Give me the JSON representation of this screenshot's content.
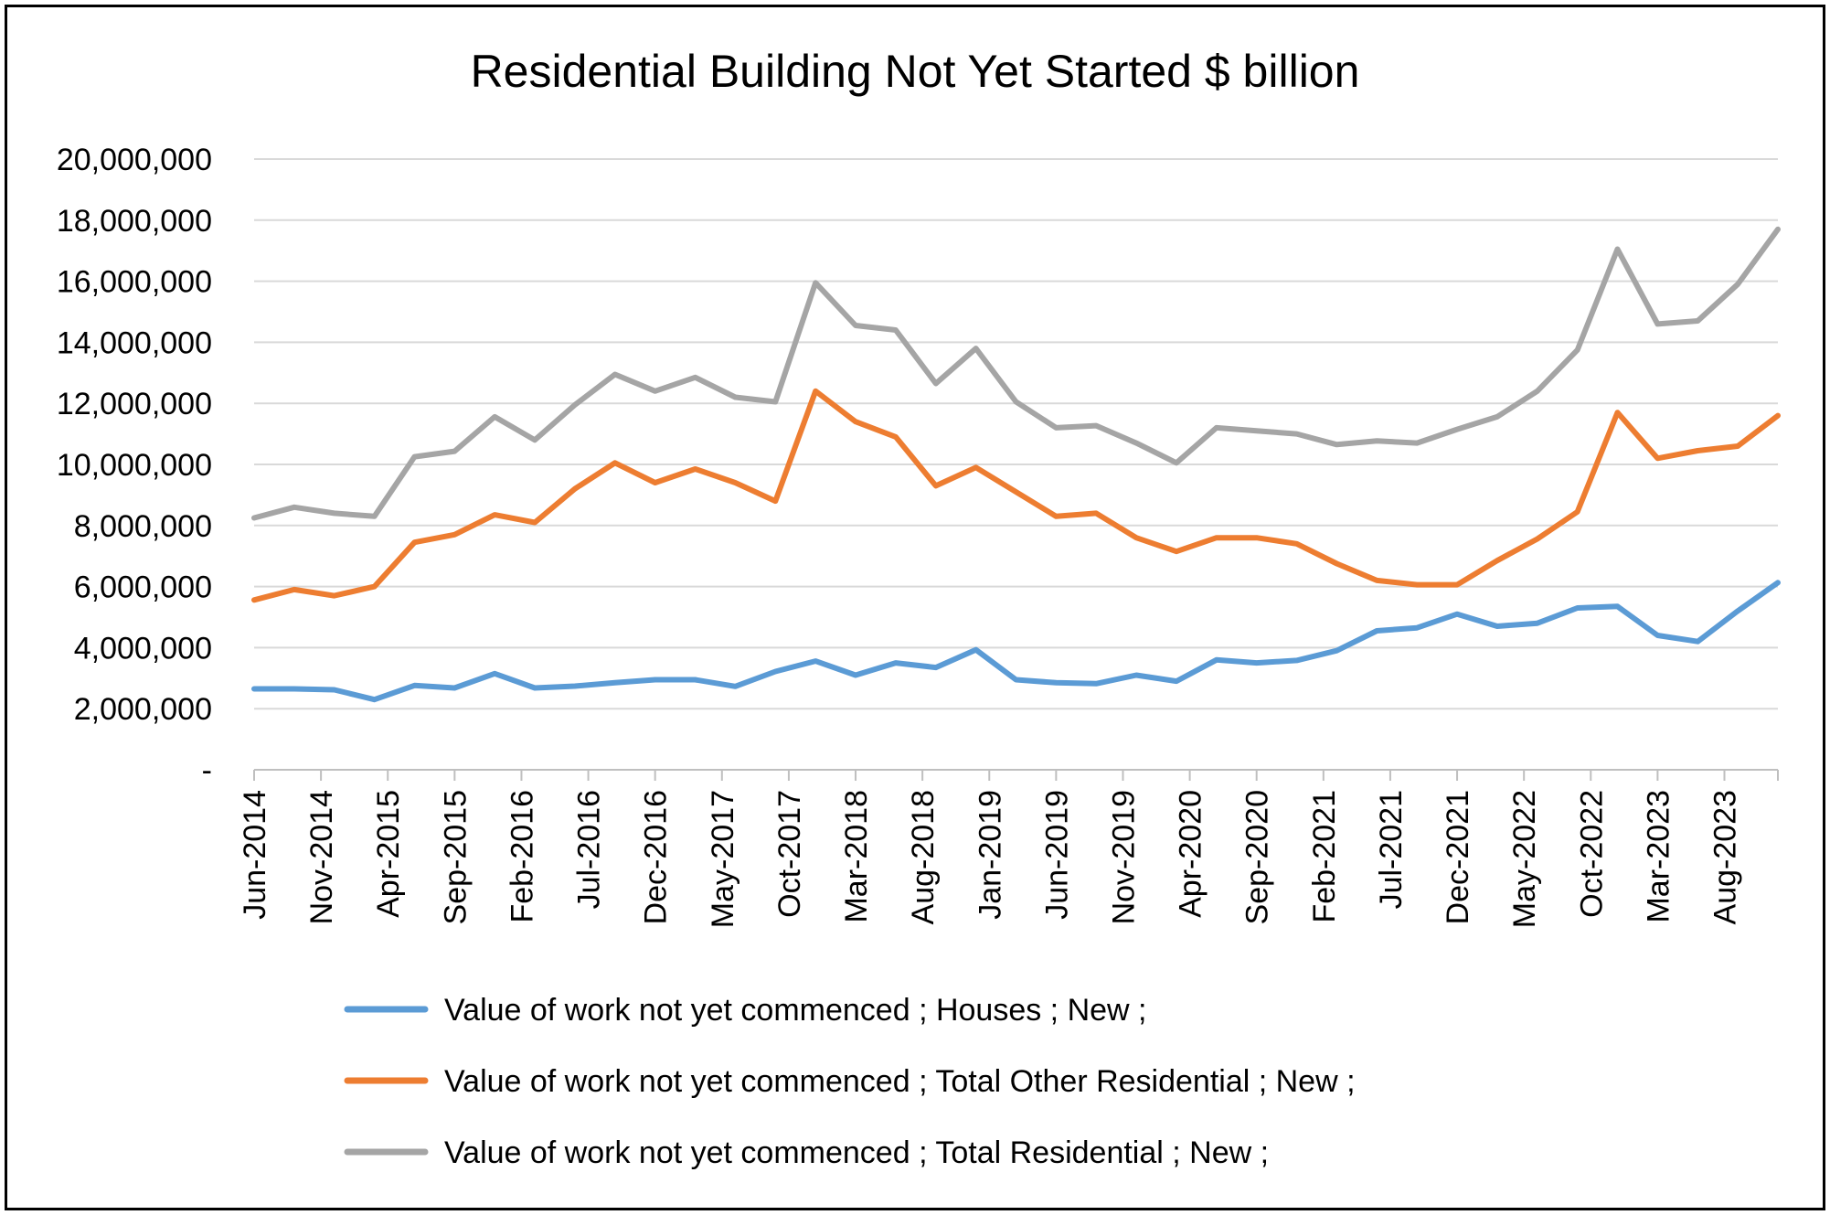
{
  "chart_data": {
    "type": "line",
    "title": "Residential Building Not Yet Started $ billion",
    "xlabel": "",
    "ylabel": "",
    "ylim": [
      0,
      20000000
    ],
    "yticks": [
      "-",
      "2,000,000",
      "4,000,000",
      "6,000,000",
      "8,000,000",
      "10,000,000",
      "12,000,000",
      "14,000,000",
      "16,000,000",
      "18,000,000",
      "20,000,000"
    ],
    "x_tick_labels": [
      "Jun-2014",
      "Nov-2014",
      "Apr-2015",
      "Sep-2015",
      "Feb-2016",
      "Jul-2016",
      "Dec-2016",
      "May-2017",
      "Oct-2017",
      "Mar-2018",
      "Aug-2018",
      "Jan-2019",
      "Jun-2019",
      "Nov-2019",
      "Apr-2020",
      "Sep-2020",
      "Feb-2021",
      "Jul-2021",
      "Dec-2021",
      "May-2022",
      "Oct-2022",
      "Mar-2023",
      "Aug-2023"
    ],
    "x": [
      "Jun-2014",
      "Sep-2014",
      "Dec-2014",
      "Mar-2015",
      "Jun-2015",
      "Sep-2015",
      "Dec-2015",
      "Mar-2016",
      "Jun-2016",
      "Sep-2016",
      "Dec-2016",
      "Mar-2017",
      "Jun-2017",
      "Sep-2017",
      "Dec-2017",
      "Mar-2018",
      "Jun-2018",
      "Sep-2018",
      "Dec-2018",
      "Mar-2019",
      "Jun-2019",
      "Sep-2019",
      "Dec-2019",
      "Mar-2020",
      "Jun-2020",
      "Sep-2020",
      "Dec-2020",
      "Mar-2021",
      "Jun-2021",
      "Sep-2021",
      "Dec-2021",
      "Mar-2022",
      "Jun-2022",
      "Sep-2022",
      "Dec-2022",
      "Mar-2023",
      "Jun-2023",
      "Sep-2023",
      "Dec-2023"
    ],
    "series": [
      {
        "name": "Value of work not yet commenced ;  Houses ;  New ;",
        "color": "#5b9bd5",
        "values": [
          2650000,
          2650000,
          2620000,
          2300000,
          2760000,
          2680000,
          3150000,
          2680000,
          2740000,
          2850000,
          2950000,
          2950000,
          2730000,
          3220000,
          3560000,
          3100000,
          3500000,
          3350000,
          3930000,
          2950000,
          2850000,
          2820000,
          3100000,
          2900000,
          3600000,
          3500000,
          3580000,
          3900000,
          4550000,
          4650000,
          5100000,
          4700000,
          4800000,
          5300000,
          5350000,
          4400000,
          4200000,
          5200000,
          6130000
        ]
      },
      {
        "name": "Value of work not yet commenced ;  Total Other Residential ;  New ;",
        "color": "#ed7d31",
        "values": [
          5560000,
          5900000,
          5700000,
          6000000,
          7450000,
          7700000,
          8350000,
          8100000,
          9200000,
          10050000,
          9400000,
          9850000,
          9400000,
          8800000,
          12400000,
          11400000,
          10900000,
          9300000,
          9900000,
          9100000,
          8300000,
          8400000,
          7600000,
          7150000,
          7600000,
          7600000,
          7400000,
          6750000,
          6200000,
          6060000,
          6060000,
          6850000,
          7560000,
          8450000,
          11700000,
          10200000,
          10450000,
          10600000,
          11600000
        ]
      },
      {
        "name": "Value of work not yet commenced ;  Total Residential ;  New ;",
        "color": "#a5a5a5",
        "values": [
          8250000,
          8600000,
          8400000,
          8300000,
          10250000,
          10430000,
          11560000,
          10800000,
          11950000,
          12950000,
          12400000,
          12850000,
          12200000,
          12050000,
          15950000,
          14550000,
          14400000,
          12650000,
          13800000,
          12050000,
          11200000,
          11270000,
          10700000,
          10050000,
          11200000,
          11100000,
          11000000,
          10650000,
          10770000,
          10700000,
          11150000,
          11560000,
          12400000,
          13750000,
          17050000,
          14600000,
          14700000,
          15900000,
          17700000
        ]
      }
    ],
    "grid": true,
    "legend_position": "bottom"
  }
}
